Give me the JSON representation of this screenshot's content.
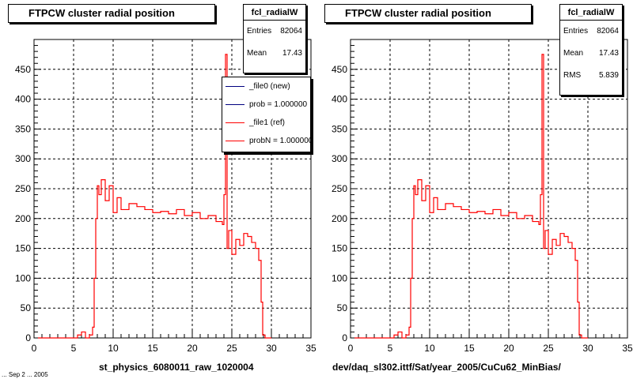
{
  "pads": [
    {
      "title": "FTPCW cluster radial position",
      "xlabel": "st_physics_6080011_raw_1020004",
      "stats": {
        "name": "fcl_radialW",
        "rows": [
          {
            "label": "Entries",
            "value": "82064"
          },
          {
            "label": "Mean",
            "value": "17.43"
          }
        ]
      },
      "legend": [
        {
          "label": "_file0 (new)",
          "color": "#000080"
        },
        {
          "label": "prob = 1.000000",
          "color": "#000080"
        },
        {
          "label": "_file1 (ref)",
          "color": "#ff0000"
        },
        {
          "label": "probN = 1.000000",
          "color": "#ff0000"
        }
      ]
    },
    {
      "title": "FTPCW cluster radial position",
      "xlabel": "dev/daq_sl302.ittf/Sat/year_2005/CuCu62_MinBias/",
      "stats": {
        "name": "fcl_radialW",
        "rows": [
          {
            "label": "Entries",
            "value": "82064"
          },
          {
            "label": "Mean",
            "value": "17.43"
          },
          {
            "label": "RMS",
            "value": "5.839"
          }
        ]
      },
      "legend": []
    }
  ],
  "footer": "... Sep 2 ... 2005",
  "chart_data": [
    {
      "type": "line",
      "title": "FTPCW cluster radial position",
      "xlabel": "st_physics_6080011_raw_1020004",
      "ylabel": "",
      "xlim": [
        0,
        35
      ],
      "ylim": [
        0,
        500
      ],
      "xticks": [
        0,
        5,
        10,
        15,
        20,
        25,
        30,
        35
      ],
      "yticks": [
        0,
        50,
        100,
        150,
        200,
        250,
        300,
        350,
        400,
        450
      ],
      "grid": true,
      "legend_position": "top-right",
      "series": [
        {
          "name": "_file1 (ref)",
          "color": "#ff0000",
          "x": [
            0.5,
            5.0,
            5.5,
            6.0,
            6.5,
            7.0,
            7.4,
            7.6,
            7.8,
            8.0,
            8.2,
            8.5,
            9.0,
            9.5,
            10.0,
            10.5,
            11.0,
            12.0,
            13.0,
            14.0,
            15.0,
            16.0,
            17.0,
            18.0,
            19.0,
            20.0,
            21.0,
            22.0,
            23.0,
            23.8,
            24.0,
            24.2,
            24.4,
            24.6,
            25.0,
            25.5,
            26.0,
            26.5,
            27.0,
            27.5,
            28.0,
            28.4,
            28.7,
            28.9,
            29.2,
            30.0
          ],
          "y": [
            0,
            0,
            5,
            10,
            0,
            5,
            18,
            100,
            200,
            255,
            240,
            265,
            230,
            255,
            210,
            235,
            215,
            225,
            220,
            215,
            210,
            212,
            208,
            215,
            205,
            210,
            200,
            205,
            195,
            190,
            240,
            475,
            150,
            180,
            140,
            165,
            155,
            175,
            170,
            160,
            150,
            130,
            60,
            5,
            0,
            0
          ]
        }
      ]
    },
    {
      "type": "line",
      "title": "FTPCW cluster radial position",
      "xlabel": "dev/daq_sl302.ittf/Sat/year_2005/CuCu62_MinBias/",
      "ylabel": "",
      "xlim": [
        0,
        35
      ],
      "ylim": [
        0,
        500
      ],
      "xticks": [
        0,
        5,
        10,
        15,
        20,
        25,
        30,
        35
      ],
      "yticks": [
        0,
        50,
        100,
        150,
        200,
        250,
        300,
        350,
        400,
        450
      ],
      "grid": true,
      "series": [
        {
          "name": "fcl_radialW",
          "color": "#ff0000",
          "x": [
            0.5,
            5.0,
            5.5,
            6.0,
            6.5,
            7.0,
            7.4,
            7.6,
            7.8,
            8.0,
            8.2,
            8.5,
            9.0,
            9.5,
            10.0,
            10.5,
            11.0,
            12.0,
            13.0,
            14.0,
            15.0,
            16.0,
            17.0,
            18.0,
            19.0,
            20.0,
            21.0,
            22.0,
            23.0,
            23.8,
            24.0,
            24.2,
            24.4,
            24.6,
            25.0,
            25.5,
            26.0,
            26.5,
            27.0,
            27.5,
            28.0,
            28.4,
            28.7,
            28.9,
            29.2,
            30.0
          ],
          "y": [
            0,
            0,
            5,
            10,
            0,
            5,
            18,
            100,
            200,
            255,
            240,
            265,
            230,
            255,
            210,
            235,
            215,
            225,
            220,
            215,
            210,
            212,
            208,
            215,
            205,
            210,
            200,
            205,
            195,
            190,
            240,
            475,
            150,
            180,
            140,
            165,
            155,
            175,
            170,
            160,
            150,
            130,
            60,
            5,
            0,
            0
          ]
        }
      ]
    }
  ]
}
